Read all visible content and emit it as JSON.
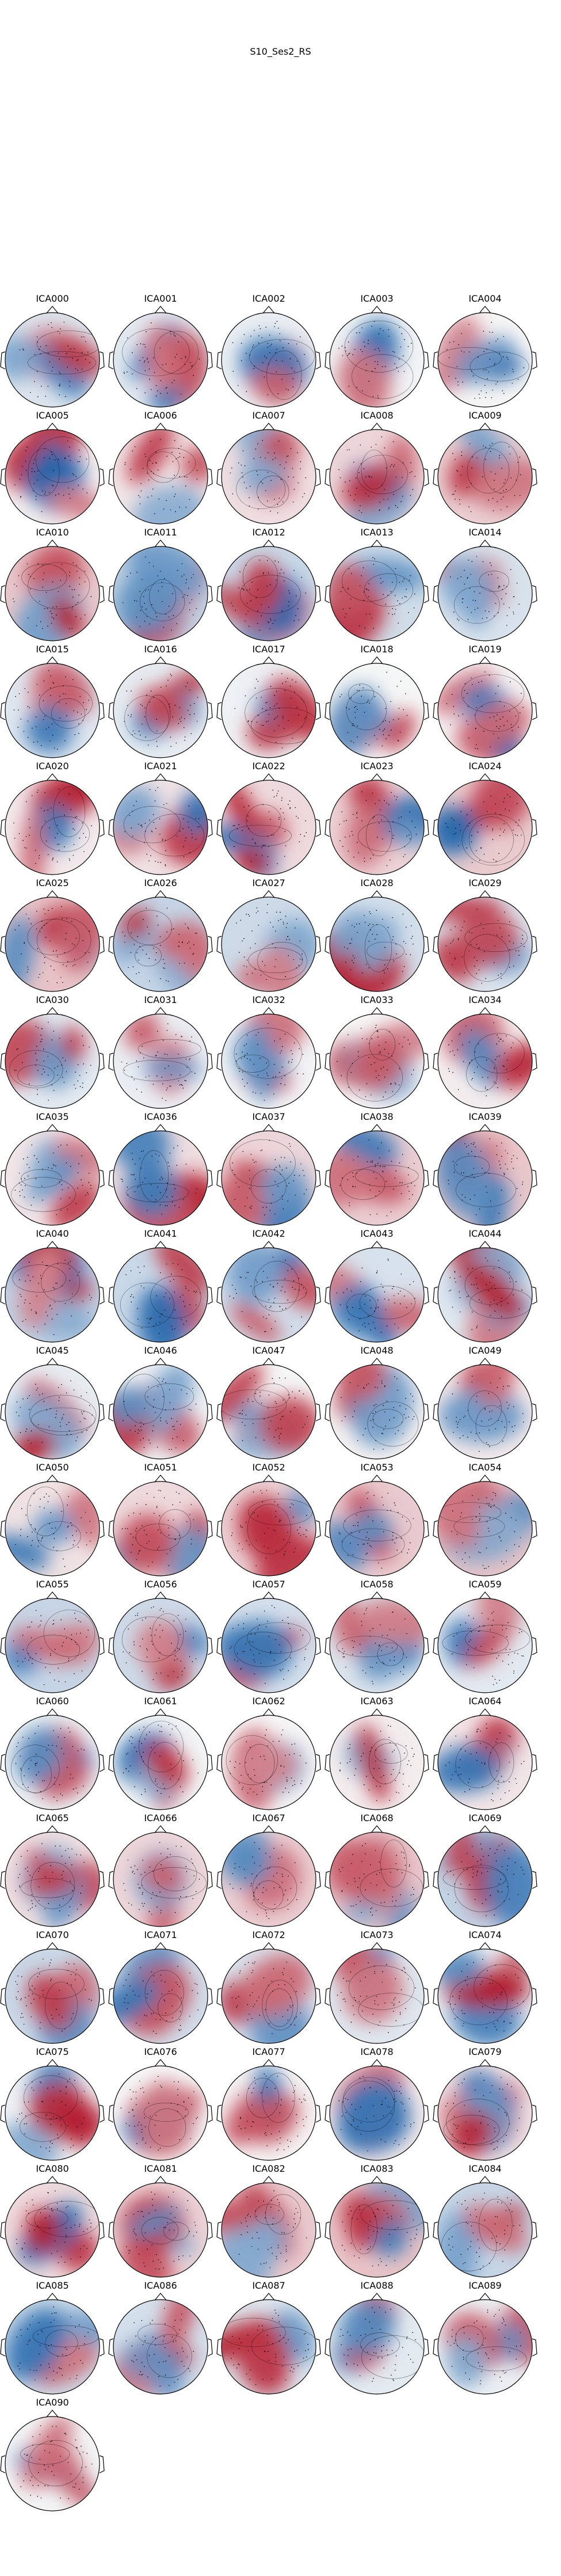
{
  "figure": {
    "title": "S10_Ses2_RS",
    "colormap": {
      "negative": "#2166ac",
      "neutral": "#f7f7f7",
      "positive": "#b2182b"
    }
  },
  "components": [
    "ICA000",
    "ICA001",
    "ICA002",
    "ICA003",
    "ICA004",
    "ICA005",
    "ICA006",
    "ICA007",
    "ICA008",
    "ICA009",
    "ICA010",
    "ICA011",
    "ICA012",
    "ICA013",
    "ICA014",
    "ICA015",
    "ICA016",
    "ICA017",
    "ICA018",
    "ICA019",
    "ICA020",
    "ICA021",
    "ICA022",
    "ICA023",
    "ICA024",
    "ICA025",
    "ICA026",
    "ICA027",
    "ICA028",
    "ICA029",
    "ICA030",
    "ICA031",
    "ICA032",
    "ICA033",
    "ICA034",
    "ICA035",
    "ICA036",
    "ICA037",
    "ICA038",
    "ICA039",
    "ICA040",
    "ICA041",
    "ICA042",
    "ICA043",
    "ICA044",
    "ICA045",
    "ICA046",
    "ICA047",
    "ICA048",
    "ICA049",
    "ICA050",
    "ICA051",
    "ICA052",
    "ICA053",
    "ICA054",
    "ICA055",
    "ICA056",
    "ICA057",
    "ICA058",
    "ICA059",
    "ICA060",
    "ICA061",
    "ICA062",
    "ICA063",
    "ICA064",
    "ICA065",
    "ICA066",
    "ICA067",
    "ICA068",
    "ICA069",
    "ICA070",
    "ICA071",
    "ICA072",
    "ICA073",
    "ICA074",
    "ICA075",
    "ICA076",
    "ICA077",
    "ICA078",
    "ICA079",
    "ICA080",
    "ICA081",
    "ICA082",
    "ICA083",
    "ICA084",
    "ICA085",
    "ICA086",
    "ICA087",
    "ICA088",
    "ICA089",
    "ICA090"
  ]
}
